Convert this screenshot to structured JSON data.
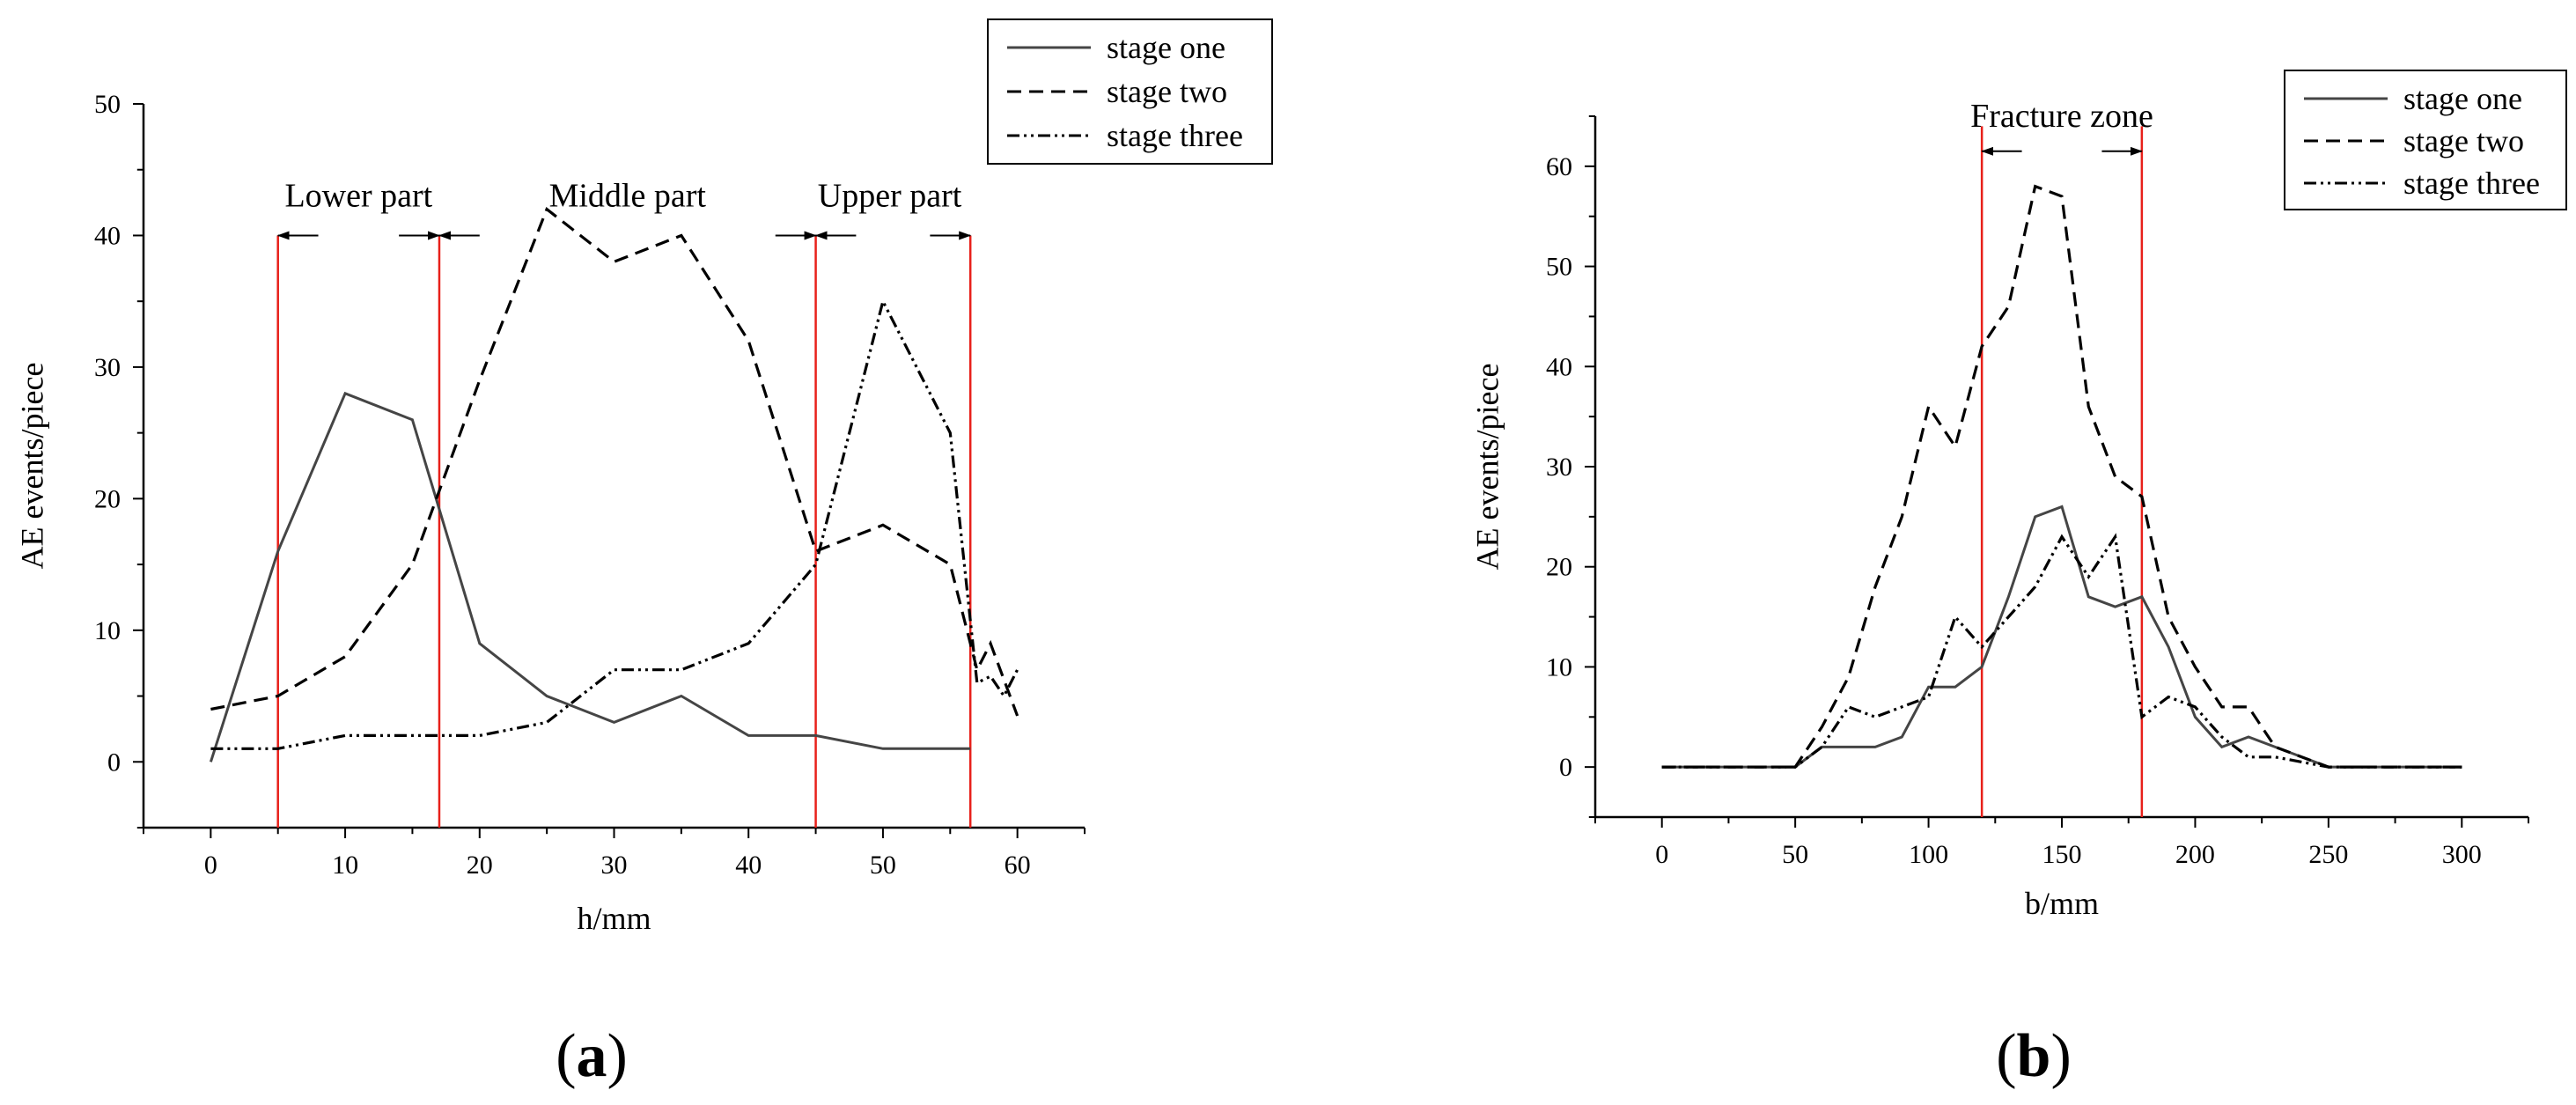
{
  "chart_data": [
    {
      "type": "line",
      "panel_label": "(a)",
      "xlabel": "h/mm",
      "ylabel": "AE events/piece",
      "xlim": [
        -5,
        65
      ],
      "ylim": [
        -5,
        50
      ],
      "xticks": [
        0,
        10,
        20,
        30,
        40,
        50,
        60
      ],
      "yticks": [
        0,
        10,
        20,
        30,
        40,
        50
      ],
      "legend_position": "top-right",
      "series": [
        {
          "name": "stage one",
          "style": "solid",
          "x": [
            0,
            5,
            10,
            15,
            20,
            25,
            30,
            35,
            40,
            45,
            50,
            55,
            56.5
          ],
          "y": [
            0,
            16,
            28,
            26,
            9,
            5,
            3,
            5,
            2,
            2,
            1,
            1,
            1
          ]
        },
        {
          "name": "stage two",
          "style": "dashed",
          "x": [
            0,
            5,
            10,
            15,
            20,
            25,
            30,
            35,
            40,
            45,
            50,
            55,
            57,
            58,
            60
          ],
          "y": [
            4,
            5,
            8,
            15,
            29,
            42,
            38,
            40,
            32,
            16,
            18,
            15,
            7,
            9,
            3.5
          ]
        },
        {
          "name": "stage three",
          "style": "dash-dot-dot",
          "x": [
            0,
            5,
            10,
            15,
            20,
            25,
            30,
            35,
            40,
            45,
            50,
            55,
            57,
            58,
            59,
            60
          ],
          "y": [
            1,
            1,
            2,
            2,
            2,
            3,
            7,
            7,
            9,
            15,
            35,
            25,
            6,
            6.5,
            5,
            7
          ]
        }
      ],
      "vertical_lines": [
        5,
        17,
        45,
        56.5
      ],
      "vertical_line_color": "#e8201a",
      "annotations": [
        {
          "text": "Lower part",
          "x": 11,
          "y": 43
        },
        {
          "text": "Middle part",
          "x": 31,
          "y": 43
        },
        {
          "text": "Upper part",
          "x": 50.5,
          "y": 43
        }
      ],
      "arrows": [
        {
          "x_from": 8,
          "x_to": 5,
          "y": 40
        },
        {
          "x_from": 14,
          "x_to": 17,
          "y": 40
        },
        {
          "x_from": 20,
          "x_to": 17,
          "y": 40
        },
        {
          "x_from": 42,
          "x_to": 45,
          "y": 40
        },
        {
          "x_from": 48,
          "x_to": 45,
          "y": 40
        },
        {
          "x_from": 53.5,
          "x_to": 56.5,
          "y": 40
        }
      ]
    },
    {
      "type": "line",
      "panel_label": "(b)",
      "xlabel": "b/mm",
      "ylabel": "AE events/piece",
      "xlim": [
        -25,
        325
      ],
      "ylim": [
        -5,
        65
      ],
      "xticks": [
        0,
        50,
        100,
        150,
        200,
        250,
        300
      ],
      "yticks": [
        0,
        10,
        20,
        30,
        40,
        50,
        60
      ],
      "legend_position": "top-right",
      "series": [
        {
          "name": "stage one",
          "style": "solid",
          "x": [
            0,
            50,
            60,
            70,
            80,
            90,
            100,
            110,
            120,
            130,
            140,
            150,
            160,
            170,
            180,
            190,
            200,
            210,
            220,
            230,
            250,
            300
          ],
          "y": [
            0,
            0,
            2,
            2,
            2,
            3,
            8,
            8,
            10,
            17,
            25,
            26,
            17,
            16,
            17,
            12,
            5,
            2,
            3,
            2,
            0,
            0
          ]
        },
        {
          "name": "stage two",
          "style": "dashed",
          "x": [
            0,
            50,
            60,
            70,
            80,
            90,
            100,
            110,
            120,
            130,
            140,
            150,
            160,
            170,
            180,
            190,
            200,
            210,
            220,
            230,
            250,
            300
          ],
          "y": [
            0,
            0,
            4,
            9,
            18,
            25,
            36,
            32,
            42,
            46,
            58,
            57,
            36,
            29,
            27,
            15,
            10,
            6,
            6,
            2,
            0,
            0
          ]
        },
        {
          "name": "stage three",
          "style": "dash-dot-dot",
          "x": [
            0,
            50,
            60,
            70,
            80,
            90,
            100,
            110,
            120,
            130,
            140,
            150,
            160,
            170,
            180,
            190,
            200,
            210,
            220,
            230,
            250,
            300
          ],
          "y": [
            0,
            0,
            2,
            6,
            5,
            6,
            7,
            15,
            12,
            15,
            18,
            23,
            19,
            23,
            5,
            7,
            6,
            3,
            1,
            1,
            0,
            0
          ]
        }
      ],
      "vertical_lines": [
        120,
        180
      ],
      "vertical_line_color": "#e8201a",
      "annotations": [
        {
          "text": "Fracture zone",
          "x": 150,
          "y": 65
        }
      ],
      "arrows": [
        {
          "x_from": 135,
          "x_to": 120,
          "y": 61.5
        },
        {
          "x_from": 165,
          "x_to": 180,
          "y": 61.5
        }
      ]
    }
  ]
}
